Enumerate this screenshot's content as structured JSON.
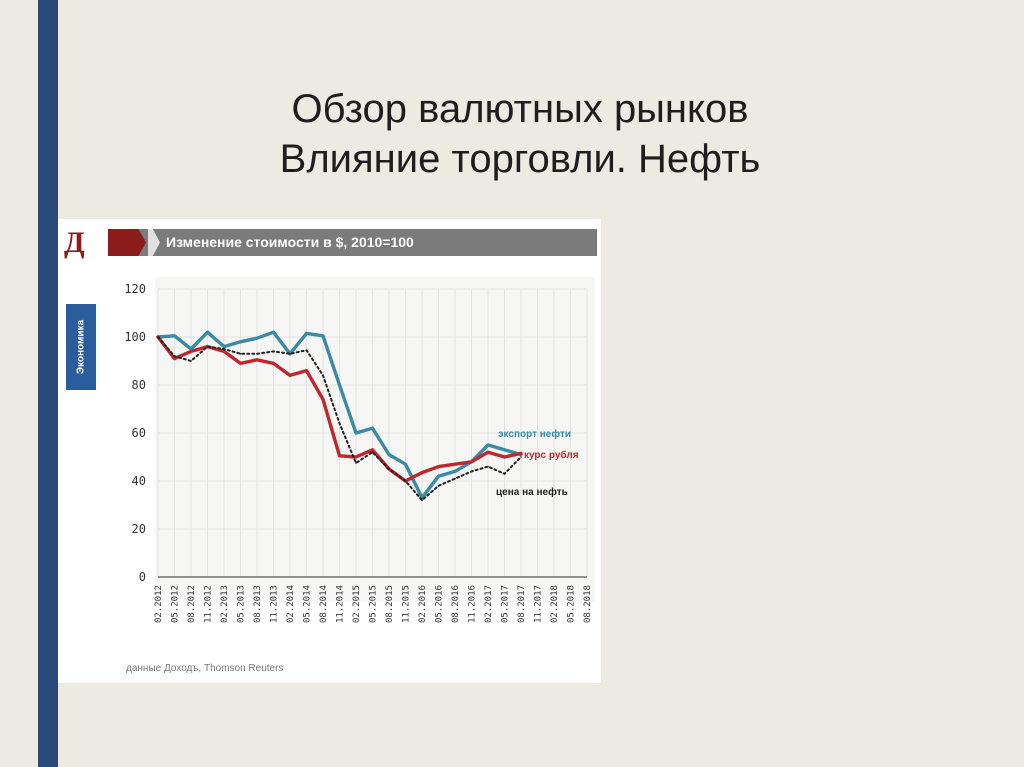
{
  "slide": {
    "title_line1": "Обзор валютных рынков",
    "title_line2": "Влияние торговли. Нефть",
    "accent_color": "#2b4a7a"
  },
  "card": {
    "logo": "Д",
    "header": "Изменение стоимости в $, 2010=100",
    "side_tab": "Экономика",
    "source": "данные Доходъ, Thomson Reuters"
  },
  "chart_data": {
    "type": "line",
    "title": "Изменение стоимости в $, 2010=100",
    "x": [
      "02.2012",
      "05.2012",
      "08.2012",
      "11.2012",
      "02.2013",
      "05.2013",
      "08.2013",
      "11.2013",
      "02.2014",
      "05.2014",
      "08.2014",
      "11.2014",
      "02.2015",
      "05.2015",
      "08.2015",
      "11.2015",
      "02.2016",
      "05.2016",
      "08.2016",
      "11.2016",
      "02.2017",
      "05.2017",
      "08.2017",
      "11.2017",
      "02.2018",
      "05.2018",
      "08.2018"
    ],
    "ylim": [
      0,
      120
    ],
    "yticks": [
      0,
      20,
      40,
      60,
      80,
      100,
      120
    ],
    "grid": true,
    "series": [
      {
        "name": "экспорт нефти",
        "color": "#3a8aa4",
        "style": "solid",
        "values": [
          100,
          100.5,
          95,
          102,
          96,
          98,
          99.5,
          102,
          93,
          101.5,
          100.5,
          80,
          60,
          62,
          51,
          47,
          33,
          42,
          44,
          48,
          55,
          53,
          51,
          null,
          null,
          null,
          null
        ]
      },
      {
        "name": "курс рубля",
        "color": "#c0272d",
        "style": "solid",
        "values": [
          100,
          91,
          94,
          96,
          94,
          89,
          90.5,
          89,
          84,
          86,
          74,
          50.5,
          50,
          53,
          45,
          40,
          43.5,
          46,
          47,
          48,
          52,
          50,
          51.5,
          null,
          null,
          null,
          null
        ]
      },
      {
        "name": "цена на нефть",
        "color": "#222222",
        "style": "dotted",
        "values": [
          100,
          92,
          90,
          96,
          95,
          93,
          93,
          94,
          93,
          94.5,
          84,
          64,
          47.5,
          52,
          45,
          40,
          32,
          38,
          41,
          44,
          46,
          43,
          50,
          null,
          null,
          null,
          null
        ]
      }
    ]
  }
}
